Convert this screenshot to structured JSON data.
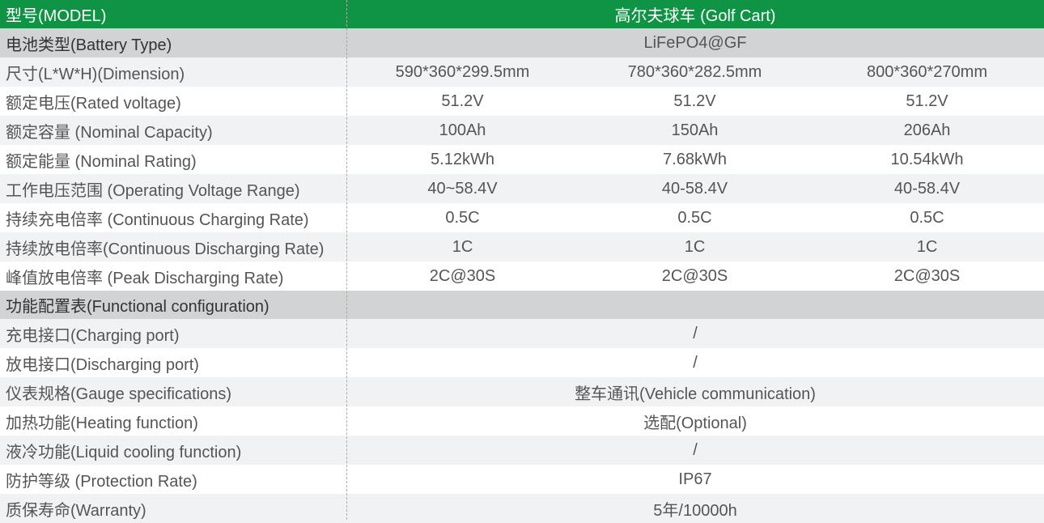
{
  "header": {
    "model_label": "型号(MODEL)",
    "model_value": "高尔夫球车 (Golf Cart)"
  },
  "battery_type": {
    "label": "电池类型(Battery Type)",
    "value": "LiFePO4@GF"
  },
  "spec_rows": [
    {
      "label": "尺寸(L*W*H)(Dimension)",
      "values": [
        "590*360*299.5mm",
        "780*360*282.5mm",
        "800*360*270mm"
      ]
    },
    {
      "label": "额定电压(Rated voltage)",
      "values": [
        "51.2V",
        "51.2V",
        "51.2V"
      ]
    },
    {
      "label": "额定容量 (Nominal Capacity)",
      "values": [
        "100Ah",
        "150Ah",
        "206Ah"
      ]
    },
    {
      "label": "额定能量 (Nominal Rating)",
      "values": [
        "5.12kWh",
        "7.68kWh",
        "10.54kWh"
      ]
    },
    {
      "label": "工作电压范围 (Operating Voltage Range)",
      "values": [
        "40~58.4V",
        "40-58.4V",
        "40-58.4V"
      ]
    },
    {
      "label": "持续充电倍率 (Continuous Charging Rate)",
      "values": [
        "0.5C",
        "0.5C",
        "0.5C"
      ]
    },
    {
      "label": "持续放电倍率(Continuous Discharging Rate)",
      "values": [
        "1C",
        "1C",
        "1C"
      ]
    },
    {
      "label": "峰值放电倍率 (Peak Discharging Rate)",
      "values": [
        "2C@30S",
        "2C@30S",
        "2C@30S"
      ]
    }
  ],
  "section": {
    "label": "功能配置表(Functional configuration)"
  },
  "config_rows": [
    {
      "label": "充电接口(Charging port)",
      "value": "/"
    },
    {
      "label": "放电接口(Discharging port)",
      "value": "/"
    },
    {
      "label": "仪表规格(Gauge specifications)",
      "value": "整车通讯(Vehicle communication)"
    },
    {
      "label": "加热功能(Heating function)",
      "value": "选配(Optional)"
    },
    {
      "label": "液冷功能(Liquid cooling function)",
      "value": "/"
    },
    {
      "label": "防护等级 (Protection Rate)",
      "value": "IP67"
    },
    {
      "label": "质保寿命(Warranty)",
      "value": "5年/10000h"
    }
  ],
  "colors": {
    "header": "#0e9444",
    "section": "#d2d3d5",
    "stripe": "#f1f2f4"
  }
}
